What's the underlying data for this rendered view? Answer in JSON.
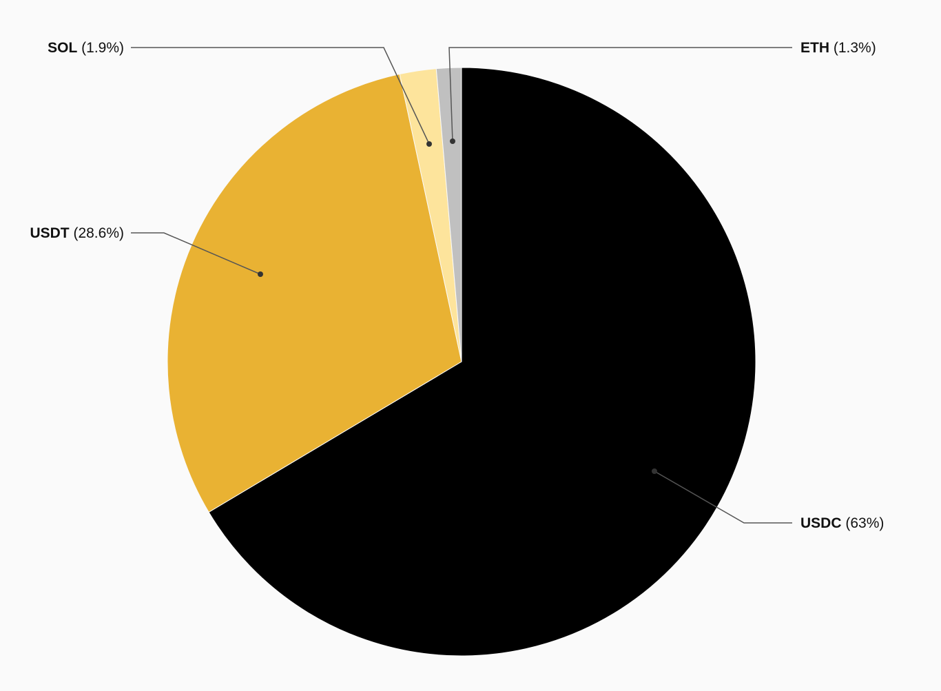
{
  "chart_data": {
    "type": "pie",
    "start": "top",
    "direction": "clockwise",
    "slices": [
      {
        "label": "USDC",
        "value": 63,
        "pct_label": "(63%)",
        "color": "#000000"
      },
      {
        "label": "USDT",
        "value": 28.6,
        "pct_label": "(28.6%)",
        "color": "#e9b233"
      },
      {
        "label": "SOL",
        "value": 1.9,
        "pct_label": "(1.9%)",
        "color": "#fde49c"
      },
      {
        "label": "ETH",
        "value": 1.3,
        "pct_label": "(1.3%)",
        "color": "#c0c0c0"
      }
    ],
    "legend": "none",
    "leader_line_color": "#555555"
  }
}
